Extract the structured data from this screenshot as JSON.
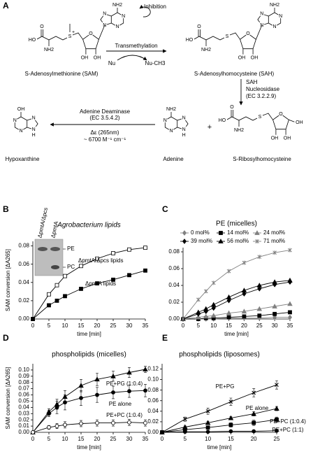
{
  "panel_labels": [
    "A",
    "B",
    "C",
    "D",
    "E"
  ],
  "scheme": {
    "inhibition": "Inhibition",
    "transmethylation": "Transmethylation",
    "nu": "Nu",
    "nu_ch3": "Nu-CH3",
    "sam": "S-Adenosylmethionine (SAM)",
    "sah": "S-Adenosylhomocysteine (SAH)",
    "enzyme1": [
      "SAH",
      "Nucleosidase",
      "(EC 3.2.2.9)"
    ],
    "enzyme2": [
      "Adenine Deaminase",
      "(EC 3.5.4.2)"
    ],
    "extinction": [
      "Δε (265nm)",
      "~ 6700 M⁻¹ cm⁻¹"
    ],
    "hypoxanthine": "Hypoxanthine",
    "adenine": "Adenine",
    "plus": "+",
    "srh": "S-Ribosylhomocysteine",
    "atoms": {
      "sam": [
        "O",
        "HO",
        "NH2",
        "S",
        "+",
        "O",
        "OH",
        "OH",
        "NH2",
        "N",
        "N",
        "N",
        "N"
      ],
      "sah": [
        "O",
        "HO",
        "NH2",
        "S",
        "O",
        "OH",
        "OH",
        "NH2",
        "N",
        "N",
        "N",
        "N"
      ],
      "srh": [
        "O",
        "HO",
        "NH2",
        "S",
        "O",
        "OH",
        "OH",
        "OH"
      ],
      "adenine": [
        "NH2",
        "N",
        "N",
        "N",
        "N",
        "H"
      ],
      "hypoxanthine": [
        "OH",
        "N",
        "N",
        "N",
        "N",
        "H"
      ]
    }
  },
  "chart_data": [
    {
      "type": "line",
      "title": "Agrobacterium lipids",
      "title_italic": true,
      "ylabel": "SAM conversion [ΔA265]",
      "xlabel": "time [min]",
      "x": [
        0,
        5,
        7.5,
        10,
        15,
        20,
        25,
        30,
        35
      ],
      "series": [
        {
          "name": "ΔpmtA/Δpcs lipids",
          "color": "#000000",
          "marker": "square-open",
          "values": [
            0,
            0.027,
            0.037,
            0.047,
            0.058,
            0.066,
            0.072,
            0.076,
            0.078
          ]
        },
        {
          "name": "ΔpmtA lipids",
          "color": "#000000",
          "marker": "square",
          "values": [
            0,
            0.015,
            0.02,
            0.025,
            0.033,
            0.039,
            0.043,
            0.048,
            0.053
          ]
        }
      ],
      "legend": "inline",
      "inset": {
        "labels": [
          "ΔpmtA/Δpcs",
          "ΔpmtA",
          "PE",
          "PC"
        ]
      },
      "xlim": [
        0,
        35
      ],
      "xticks": [
        0,
        5,
        10,
        15,
        20,
        25,
        30,
        35
      ],
      "ylim": [
        0,
        0.085
      ],
      "yticks": [
        {
          "value": 0,
          "label": "0.00"
        },
        {
          "value": 0.02,
          "label": "0.02"
        },
        {
          "value": 0.04,
          "label": "0.04"
        },
        {
          "value": 0.06,
          "label": "0.06"
        },
        {
          "value": 0.08,
          "label": "0.08"
        }
      ]
    },
    {
      "type": "line",
      "title": "PE (micelles)",
      "xlabel": "time [min]",
      "x": [
        0,
        5,
        7.5,
        10,
        15,
        20,
        25,
        30,
        35
      ],
      "series": [
        {
          "name": "0 mol%",
          "color": "#808080",
          "marker": "diamond",
          "values": [
            0,
            0,
            0,
            0,
            0.001,
            0.001,
            0.001,
            0.002,
            0.002
          ]
        },
        {
          "name": "14 mol%",
          "color": "#000000",
          "marker": "square",
          "values": [
            0,
            0,
            0.001,
            0.001,
            0.002,
            0.003,
            0.004,
            0.006,
            0.008
          ]
        },
        {
          "name": "24 mol%",
          "color": "#808080",
          "marker": "triangle",
          "values": [
            0,
            0.002,
            0.003,
            0.004,
            0.007,
            0.009,
            0.012,
            0.015,
            0.018
          ]
        },
        {
          "name": "39 mol%",
          "color": "#000000",
          "marker": "diamond",
          "values": [
            0,
            0.006,
            0.009,
            0.013,
            0.022,
            0.03,
            0.036,
            0.041,
            0.044
          ]
        },
        {
          "name": "56 mol%",
          "color": "#000000",
          "marker": "triangle",
          "values": [
            0,
            0.008,
            0.012,
            0.017,
            0.026,
            0.034,
            0.04,
            0.044,
            0.046
          ]
        },
        {
          "name": "71 mol%",
          "color": "#808080",
          "marker": "star",
          "values": [
            0,
            0.023,
            0.033,
            0.043,
            0.057,
            0.067,
            0.074,
            0.079,
            0.082
          ]
        }
      ],
      "legend": "top",
      "xlim": [
        0,
        35
      ],
      "xticks": [
        0,
        5,
        10,
        15,
        20,
        25,
        30,
        35
      ],
      "ylim": [
        0,
        0.085
      ],
      "yticks": [
        {
          "value": 0,
          "label": "0.00"
        },
        {
          "value": 0.02,
          "label": "0.02"
        },
        {
          "value": 0.04,
          "label": "0.04"
        },
        {
          "value": 0.06,
          "label": "0.06"
        },
        {
          "value": 0.08,
          "label": "0.08"
        }
      ]
    },
    {
      "type": "line",
      "title": "phospholipids (micelles)",
      "ylabel": "SAM conversion [ΔA265]",
      "xlabel": "time [min]",
      "x": [
        0,
        5,
        7.5,
        10,
        15,
        20,
        25,
        30,
        35
      ],
      "series": [
        {
          "name": "PE+PG (1:0.4)",
          "color": "#000000",
          "marker": "triangle",
          "values": [
            0,
            0.033,
            0.045,
            0.057,
            0.075,
            0.085,
            0.09,
            0.096,
            0.101
          ],
          "errors": [
            0,
            0.005,
            0.008,
            0.01,
            0.01,
            0.01,
            0.008,
            0.008,
            0.005
          ]
        },
        {
          "name": "PE alone",
          "color": "#000000",
          "marker": "circle",
          "values": [
            0,
            0.03,
            0.04,
            0.048,
            0.055,
            0.06,
            0.064,
            0.066,
            0.067
          ],
          "errors": [
            0,
            0.005,
            0.01,
            0.012,
            0.012,
            0.012,
            0.01,
            0.01,
            0.01
          ]
        },
        {
          "name": "PE+PC (1:0.4)",
          "color": "#000000",
          "marker": "circle-open",
          "values": [
            0,
            0.008,
            0.01,
            0.012,
            0.014,
            0.015,
            0.015,
            0.016,
            0.015
          ],
          "errors": [
            0,
            0.003,
            0.004,
            0.005,
            0.005,
            0.005,
            0.005,
            0.005,
            0.005
          ]
        }
      ],
      "legend": "inline",
      "xlim": [
        0,
        35
      ],
      "xticks": [
        0,
        5,
        10,
        15,
        20,
        25,
        30,
        35
      ],
      "ylim": [
        0,
        0.11
      ],
      "yticks": [
        {
          "value": 0,
          "label": "0.00"
        },
        {
          "value": 0.01,
          "label": "0.01"
        },
        {
          "value": 0.02,
          "label": "0.02"
        },
        {
          "value": 0.03,
          "label": "0.03"
        },
        {
          "value": 0.04,
          "label": "0.04"
        },
        {
          "value": 0.05,
          "label": "0.05"
        },
        {
          "value": 0.06,
          "label": "0.06"
        },
        {
          "value": 0.07,
          "label": "0.07"
        },
        {
          "value": 0.08,
          "label": "0.08"
        },
        {
          "value": 0.09,
          "label": "0.09"
        },
        {
          "value": 0.1,
          "label": "0.10"
        }
      ]
    },
    {
      "type": "line",
      "title": "phospholipids (liposomes)",
      "xlabel": "time [min]",
      "x": [
        0,
        5,
        10,
        15,
        20,
        25
      ],
      "series": [
        {
          "name": "PE+PG",
          "color": "#000000",
          "marker": "x",
          "values": [
            0,
            0.025,
            0.04,
            0.058,
            0.075,
            0.09
          ],
          "errors": [
            0,
            0.004,
            0.006,
            0.007,
            0.008,
            0.008
          ]
        },
        {
          "name": "PE alone",
          "color": "#000000",
          "marker": "triangle",
          "values": [
            0,
            0.01,
            0.018,
            0.027,
            0.035,
            0.045
          ],
          "errors": [
            0,
            0.002,
            0.003,
            0.003,
            0.004,
            0.004
          ]
        },
        {
          "name": "PE+PC (1:0.4)",
          "color": "#000000",
          "marker": "square",
          "values": [
            0,
            0.005,
            0.009,
            0.014,
            0.018,
            0.024
          ],
          "errors": [
            0,
            0.002,
            0.003,
            0.004,
            0.005,
            0.005
          ]
        },
        {
          "name": "PE+PC (1:1)",
          "color": "#000000",
          "marker": "circle",
          "values": [
            0,
            0.001,
            0.001,
            0.002,
            0.002,
            0.003
          ],
          "errors": [
            0,
            0.001,
            0.001,
            0.001,
            0.001,
            0.001
          ]
        }
      ],
      "legend": "inline",
      "xlim": [
        0,
        25
      ],
      "xticks": [
        0,
        5,
        10,
        15,
        20,
        25
      ],
      "ylim": [
        0,
        0.13
      ],
      "yticks": [
        {
          "value": 0,
          "label": "0.00"
        },
        {
          "value": 0.02,
          "label": "0.02"
        },
        {
          "value": 0.04,
          "label": "0.04"
        },
        {
          "value": 0.06,
          "label": "0.06"
        },
        {
          "value": 0.08,
          "label": "0.08"
        },
        {
          "value": 0.1,
          "label": "0.10"
        },
        {
          "value": 0.12,
          "label": "0.12"
        }
      ]
    }
  ]
}
